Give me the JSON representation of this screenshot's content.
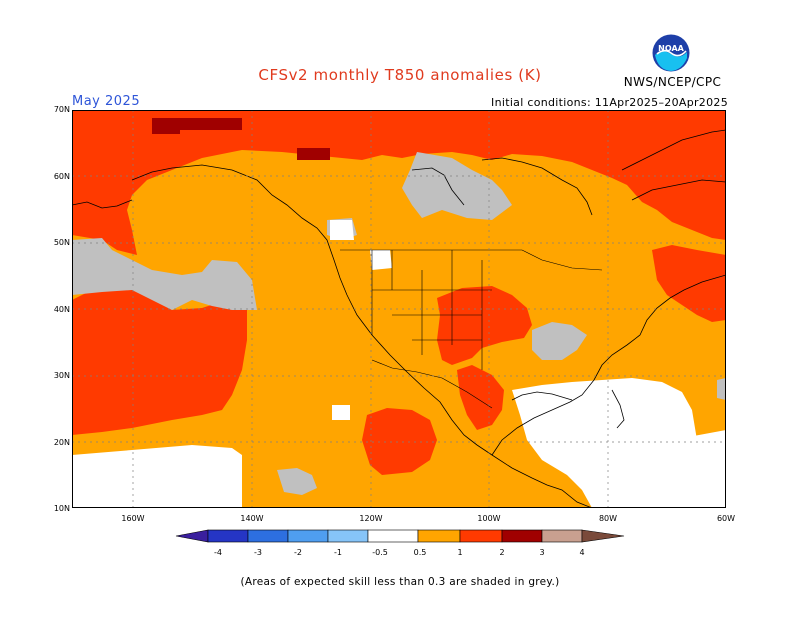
{
  "header": {
    "title": "CFSv2 monthly T850 anomalies (K)",
    "month": "May 2025",
    "initial_conditions": "Initial conditions: 11Apr2025–20Apr2025",
    "agency": "NWS/NCEP/CPC",
    "logo_text": "NOAA"
  },
  "axes": {
    "lat_labels": [
      "70N",
      "60N",
      "50N",
      "40N",
      "30N",
      "20N",
      "10N"
    ],
    "lon_labels": [
      "160W",
      "140W",
      "120W",
      "100W",
      "80W",
      "60W"
    ]
  },
  "legend": {
    "tick_labels": [
      "-4",
      "-3",
      "-2",
      "-1",
      "-0.5",
      "0.5",
      "1",
      "2",
      "3",
      "4"
    ],
    "colors": {
      "lt_-4": "#3a1f9e",
      "-4_-3": "#2535c5",
      "-3_-2": "#2d6fe0",
      "-2_-1": "#4f9ef0",
      "-1_-0.5": "#86c4f8",
      "-0.5_0.5": "#ffffff",
      "0.5_1": "#ffa500",
      "1_2": "#ff3a00",
      "2_3": "#a00000",
      "3_4": "#c9a090",
      "gt_4": "#7a4a3a"
    },
    "low_skill_color": "#c0c0c0"
  },
  "footnote": "(Areas of expected skill less than 0.3 are shaded in grey.)"
}
